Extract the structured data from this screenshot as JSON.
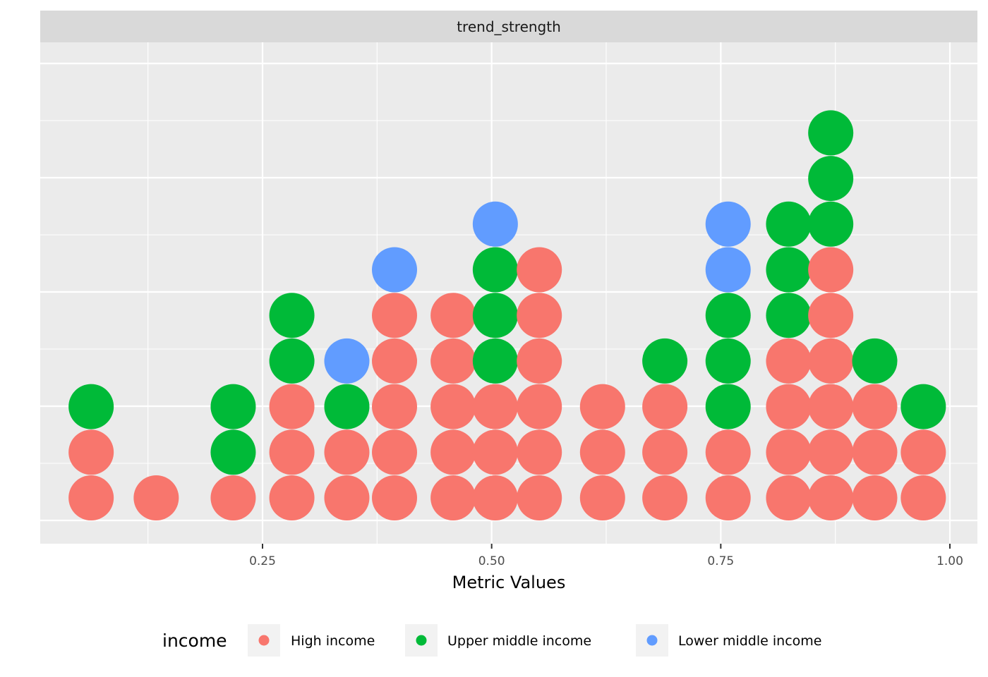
{
  "chart_data": {
    "type": "dotplot",
    "facet": "trend_strength",
    "xlabel": "Metric Values",
    "ylabel": "",
    "xlim": [
      0.01,
      1.03
    ],
    "xticks": [
      0.25,
      0.5,
      0.75,
      1.0
    ],
    "x_tick_labels": [
      "0.25",
      "0.50",
      "0.75",
      "1.00"
    ],
    "grid": true,
    "legend": {
      "title": "income",
      "position": "bottom",
      "entries": [
        {
          "key": "high",
          "label": "High income",
          "color": "#F8766D"
        },
        {
          "key": "upper",
          "label": "Upper middle income",
          "color": "#00BA38"
        },
        {
          "key": "lower",
          "label": "Lower middle income",
          "color": "#619CFF"
        }
      ]
    },
    "stacks": [
      {
        "x": 0.063,
        "dots": [
          "high",
          "high",
          "upper"
        ]
      },
      {
        "x": 0.134,
        "dots": [
          "high"
        ]
      },
      {
        "x": 0.218,
        "dots": [
          "high",
          "upper",
          "upper"
        ]
      },
      {
        "x": 0.282,
        "dots": [
          "high",
          "high",
          "high",
          "upper",
          "upper"
        ]
      },
      {
        "x": 0.342,
        "dots": [
          "high",
          "high",
          "upper",
          "lower"
        ]
      },
      {
        "x": 0.394,
        "dots": [
          "high",
          "high",
          "high",
          "high",
          "high",
          "lower"
        ]
      },
      {
        "x": 0.458,
        "dots": [
          "high",
          "high",
          "high",
          "high",
          "high"
        ]
      },
      {
        "x": 0.504,
        "dots": [
          "high",
          "high",
          "high",
          "upper",
          "upper",
          "upper",
          "lower"
        ]
      },
      {
        "x": 0.552,
        "dots": [
          "high",
          "high",
          "high",
          "high",
          "high",
          "high"
        ]
      },
      {
        "x": 0.621,
        "dots": [
          "high",
          "high",
          "high"
        ]
      },
      {
        "x": 0.689,
        "dots": [
          "high",
          "high",
          "high",
          "upper"
        ]
      },
      {
        "x": 0.758,
        "dots": [
          "high",
          "high",
          "upper",
          "upper",
          "upper",
          "lower",
          "lower"
        ]
      },
      {
        "x": 0.824,
        "dots": [
          "high",
          "high",
          "high",
          "high",
          "upper",
          "upper",
          "upper"
        ]
      },
      {
        "x": 0.87,
        "dots": [
          "high",
          "high",
          "high",
          "high",
          "high",
          "high",
          "upper",
          "upper",
          "upper"
        ]
      },
      {
        "x": 0.918,
        "dots": [
          "high",
          "high",
          "high",
          "upper"
        ]
      },
      {
        "x": 0.971,
        "dots": [
          "high",
          "high",
          "upper"
        ]
      }
    ]
  }
}
